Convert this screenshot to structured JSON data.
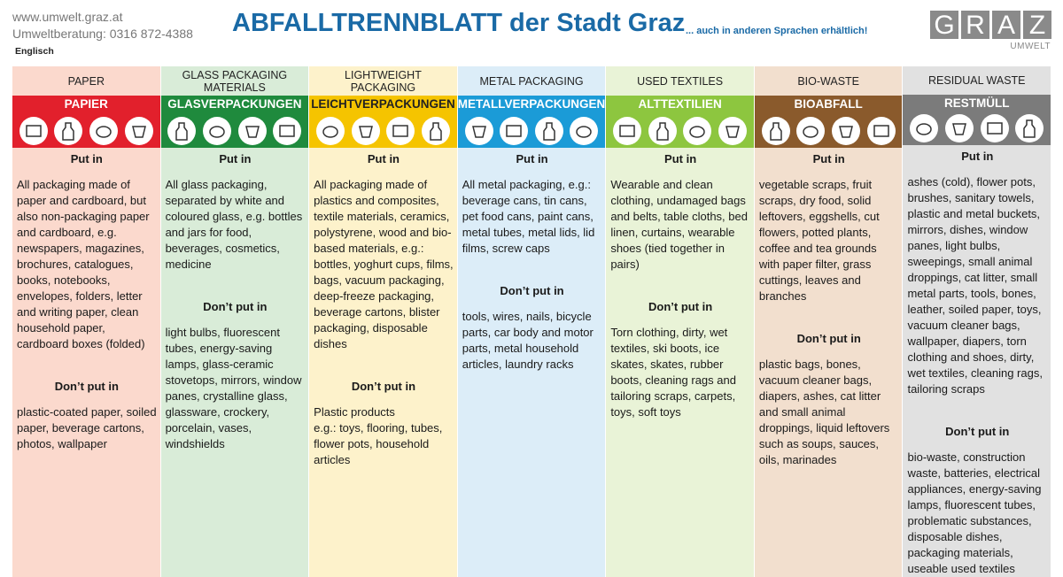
{
  "header": {
    "website": "www.umwelt.graz.at",
    "phone": "Umweltberatung: 0316 872-4388",
    "language": "Englisch",
    "title": "ABFALLTRENNBLATT der Stadt Graz",
    "subtitle": "... auch in anderen Sprachen erhältlich!",
    "logo_letters": [
      "G",
      "R",
      "A",
      "Z"
    ],
    "logo_sub": "UMWELT"
  },
  "columns": [
    {
      "english": "PAPER",
      "german": "PAPIER",
      "color": "#e2202c",
      "tint": "#fbd9cd",
      "put_in_heading": "Put in",
      "put_in": "All packaging made of paper and cardboard, but also non-packaging paper and cardboard, e.g. newspapers, magazines, brochures, catalogues, books, notebooks, envelopes, folders, letter and writing paper, clean household paper, cardboard boxes (folded)",
      "dont_heading": "Don’t put in",
      "dont": "plastic-coated paper, soiled paper, beverage cartons, photos, wallpaper"
    },
    {
      "english": "GLASS PACKAGING MATERIALS",
      "german": "GLASVERPACKUNGEN",
      "color": "#1f8a3d",
      "tint": "#d9ecd8",
      "put_in_heading": "Put in",
      "put_in": "All glass packaging, separated by white and coloured glass, e.g. bottles and jars for food, beverages, cosmetics, medicine",
      "dont_heading": "Don’t put in",
      "dont": "light bulbs, fluorescent tubes, energy-saving lamps, glass-ceramic stovetops, mirrors, window panes, crystalline glass, glassware, crockery, porcelain, vases, windshields"
    },
    {
      "english": "LIGHTWEIGHT PACKAGING",
      "german": "LEICHTVERPACKUNGEN",
      "color": "#f5c400",
      "tint": "#fdf2cb",
      "put_in_heading": "Put in",
      "put_in": "All packaging made of plastics and composites, textile materials, ceramics, polystyrene, wood and bio-based materials, e.g.: bottles, yoghurt cups, films, bags, vacuum packaging, deep-freeze packaging, beverage cartons, blister packaging, disposable dishes",
      "dont_heading": "Don’t put in",
      "dont": "Plastic products\ne.g.: toys, flooring, tubes, flower pots, household articles"
    },
    {
      "english": "METAL PACKAGING",
      "german": "METALLVERPACKUNGEN",
      "color": "#1b9bd7",
      "tint": "#dcedf8",
      "put_in_heading": "Put in",
      "put_in": "All metal packaging, e.g.: beverage cans, tin cans, pet food cans, paint cans, metal tubes, metal lids, lid films, screw caps",
      "dont_heading": "Don’t put in",
      "dont": "tools, wires, nails, bicycle parts, car body and motor parts, metal household articles, laundry racks"
    },
    {
      "english": "USED TEXTILES",
      "german": "ALTTEXTILIEN",
      "color": "#8dc63f",
      "tint": "#e9f3d7",
      "put_in_heading": "Put in",
      "put_in": "Wearable and clean clothing, undamaged bags and belts, table cloths, bed linen, curtains, wearable shoes (tied together in pairs)",
      "dont_heading": "Don’t put in",
      "dont": "Torn clothing, dirty, wet textiles, ski boots, ice skates, skates, rubber boots, cleaning rags and tailoring scraps, carpets, toys, soft toys"
    },
    {
      "english": "BIO-WASTE",
      "german": "BIOABFALL",
      "color": "#8a5a2c",
      "tint": "#f2dfce",
      "put_in_heading": "Put in",
      "put_in": "vegetable scraps, fruit scraps, dry food, solid leftovers, eggshells, cut flowers, potted plants, coffee and tea grounds with paper filter, grass cuttings, leaves and branches",
      "dont_heading": "Don’t put in",
      "dont": "plastic bags, bones, vacuum cleaner bags, diapers, ashes, cat litter and small animal droppings, liquid leftovers such as soups, sauces, oils, marinades"
    },
    {
      "english": "RESIDUAL WASTE",
      "german": "RESTMÜLL",
      "color": "#7b7b7b",
      "tint": "#e1e1e1",
      "put_in_heading": "Put in",
      "put_in": "ashes (cold), flower pots, brushes, sanitary towels, plastic and metal buckets, mirrors, dishes, window panes, light bulbs, sweepings, small animal droppings, cat litter, small metal parts, tools, bones, leather, soiled paper, toys, vacuum cleaner bags, wallpaper, diapers, torn clothing and shoes, dirty, wet textiles, cleaning rags, tailoring scraps",
      "dont_heading": "Don’t put in",
      "dont": "bio-waste, construction waste, batteries, electrical appliances, energy-saving lamps, fluorescent tubes, problematic substances, disposable dishes, packaging materials, useable used textiles"
    }
  ]
}
